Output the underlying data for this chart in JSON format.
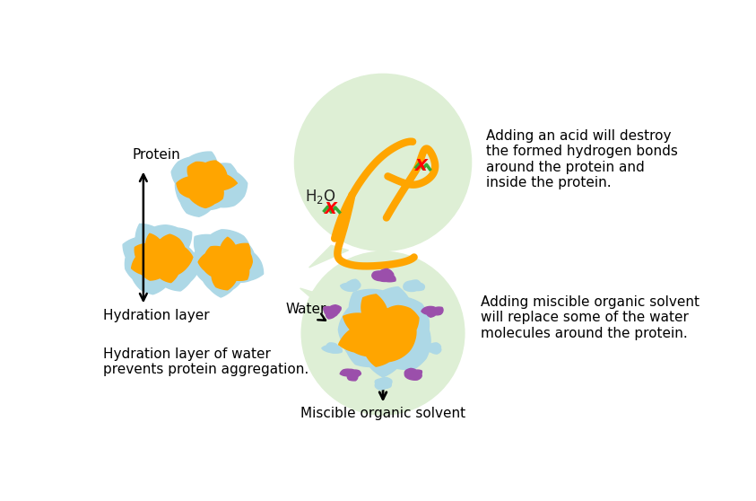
{
  "bg_color": "#ffffff",
  "protein_color": "#FFA500",
  "hydration_color": "#ADD8E6",
  "bubble_color": "#deefd5",
  "organic_color": "#9B4FAB",
  "protein_label": "Protein",
  "hydration_label": "Hydration layer",
  "water_label": "Water",
  "organic_label": "Miscible organic solvent",
  "bottom_text": "Hydration layer of water\nprevents protein aggregation.",
  "acid_text": "Adding an acid will destroy\nthe formed hydrogen bonds\naround the protein and\ninside the protein.",
  "organic_text": "Adding miscible organic solvent\nwill replace some of the water\nmolecules around the protein."
}
